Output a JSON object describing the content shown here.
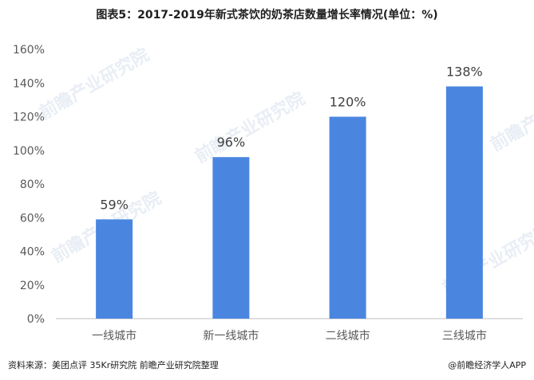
{
  "title": "图表5：2017-2019年新式茶饮的奶茶店数量增长率情况(单位：%)",
  "source": "资料来源：美团点评 35Kr研究院 前瞻产业研究院整理",
  "credit": "@前瞻经济学人APP",
  "watermark": "前瞻产业研究院",
  "colors": {
    "bar": "#4a86e0",
    "axis": "#bfbfbf",
    "text": "#595959"
  },
  "chart_data": {
    "type": "bar",
    "categories": [
      "一线城市",
      "新一线城市",
      "二线城市",
      "三线城市"
    ],
    "values": [
      59,
      96,
      120,
      138
    ],
    "data_labels": [
      "59%",
      "96%",
      "120%",
      "138%"
    ],
    "y_ticks": [
      "0%",
      "20%",
      "40%",
      "60%",
      "80%",
      "100%",
      "120%",
      "140%",
      "160%"
    ],
    "ylim": [
      0,
      160
    ],
    "grid": false,
    "legend": "none"
  }
}
